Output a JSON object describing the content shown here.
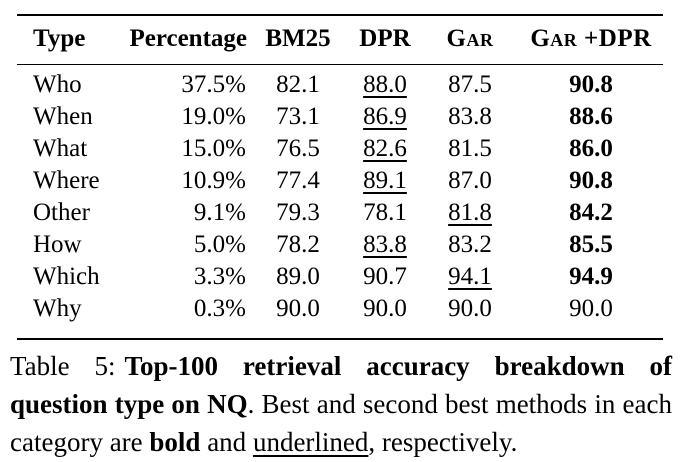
{
  "table": {
    "columns": [
      {
        "label": "Type",
        "align": "left",
        "smallcaps": false
      },
      {
        "label": "Percentage",
        "align": "right",
        "smallcaps": false
      },
      {
        "label": "BM25",
        "align": "center",
        "smallcaps": false
      },
      {
        "label": "DPR",
        "align": "center",
        "smallcaps": false
      },
      {
        "label": "Gar",
        "align": "center",
        "smallcaps": true
      },
      {
        "label": "Gar +DPR",
        "align": "center",
        "smallcaps": true
      }
    ],
    "rows": [
      {
        "cells": [
          {
            "text": "Who"
          },
          {
            "text": "37.5%"
          },
          {
            "text": "82.1"
          },
          {
            "text": "88.0",
            "style": "underline"
          },
          {
            "text": "87.5"
          },
          {
            "text": "90.8",
            "style": "bold"
          }
        ]
      },
      {
        "cells": [
          {
            "text": "When"
          },
          {
            "text": "19.0%"
          },
          {
            "text": "73.1"
          },
          {
            "text": "86.9",
            "style": "underline"
          },
          {
            "text": "83.8"
          },
          {
            "text": "88.6",
            "style": "bold"
          }
        ]
      },
      {
        "cells": [
          {
            "text": "What"
          },
          {
            "text": "15.0%"
          },
          {
            "text": "76.5"
          },
          {
            "text": "82.6",
            "style": "underline"
          },
          {
            "text": "81.5"
          },
          {
            "text": "86.0",
            "style": "bold"
          }
        ]
      },
      {
        "cells": [
          {
            "text": "Where"
          },
          {
            "text": "10.9%"
          },
          {
            "text": "77.4"
          },
          {
            "text": "89.1",
            "style": "underline"
          },
          {
            "text": "87.0"
          },
          {
            "text": "90.8",
            "style": "bold"
          }
        ]
      },
      {
        "cells": [
          {
            "text": "Other"
          },
          {
            "text": "9.1%"
          },
          {
            "text": "79.3"
          },
          {
            "text": "78.1"
          },
          {
            "text": "81.8",
            "style": "underline"
          },
          {
            "text": "84.2",
            "style": "bold"
          }
        ]
      },
      {
        "cells": [
          {
            "text": "How"
          },
          {
            "text": "5.0%"
          },
          {
            "text": "78.2"
          },
          {
            "text": "83.8",
            "style": "underline"
          },
          {
            "text": "83.2"
          },
          {
            "text": "85.5",
            "style": "bold"
          }
        ]
      },
      {
        "cells": [
          {
            "text": "Which"
          },
          {
            "text": "3.3%"
          },
          {
            "text": "89.0"
          },
          {
            "text": "90.7"
          },
          {
            "text": "94.1",
            "style": "underline"
          },
          {
            "text": "94.9",
            "style": "bold"
          }
        ]
      },
      {
        "cells": [
          {
            "text": "Why"
          },
          {
            "text": "0.3%"
          },
          {
            "text": "90.0"
          },
          {
            "text": "90.0"
          },
          {
            "text": "90.0"
          },
          {
            "text": "90.0"
          }
        ]
      }
    ]
  },
  "caption": {
    "segments": [
      {
        "text": "Table 5:",
        "style": "normal",
        "gap_after": true
      },
      {
        "text": "Top-100 retrieval accuracy breakdown of question type on NQ",
        "style": "bold"
      },
      {
        "text": ". Best and second best methods in each category are ",
        "style": "normal"
      },
      {
        "text": "bold",
        "style": "bold"
      },
      {
        "text": " and ",
        "style": "normal"
      },
      {
        "text": "underlined",
        "style": "underline"
      },
      {
        "text": ", respectively.",
        "style": "normal"
      }
    ]
  }
}
